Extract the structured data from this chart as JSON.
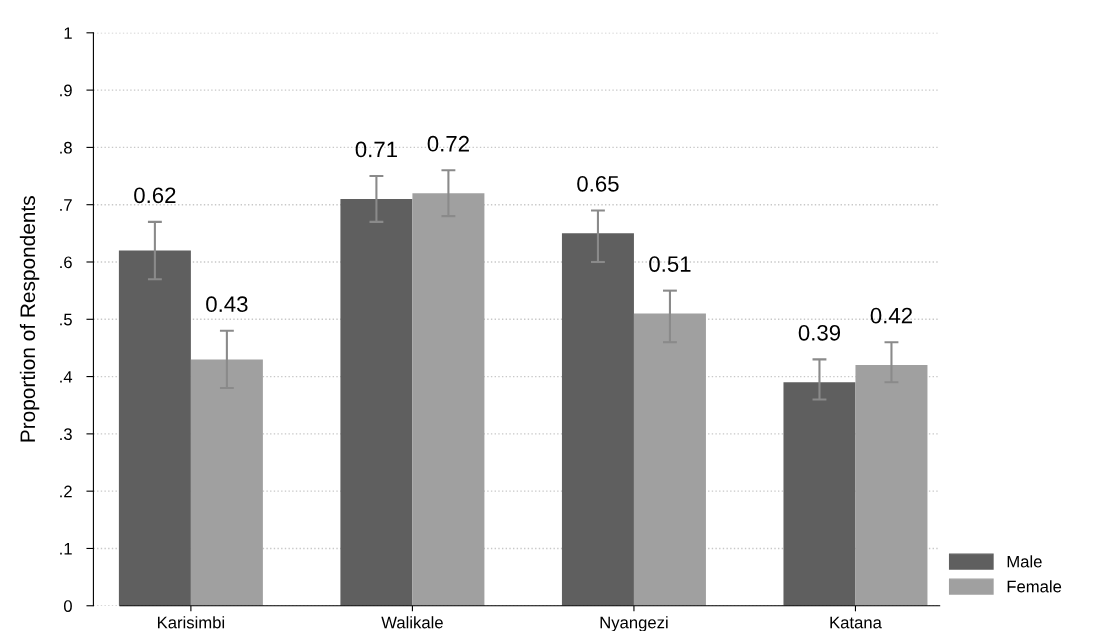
{
  "chart_data": {
    "type": "bar",
    "ylabel": "Proportion of Respondents",
    "categories": [
      "Karisimbi",
      "Walikale",
      "Nyangezi",
      "Katana"
    ],
    "series": [
      {
        "name": "Male",
        "color": "#5f5f5f",
        "values": [
          0.62,
          0.71,
          0.65,
          0.39
        ],
        "errors": [
          [
            0.57,
            0.67
          ],
          [
            0.67,
            0.75
          ],
          [
            0.6,
            0.69
          ],
          [
            0.36,
            0.43
          ]
        ]
      },
      {
        "name": "Female",
        "color": "#a0a0a0",
        "values": [
          0.43,
          0.72,
          0.51,
          0.42
        ],
        "errors": [
          [
            0.38,
            0.48
          ],
          [
            0.68,
            0.76
          ],
          [
            0.46,
            0.55
          ],
          [
            0.39,
            0.46
          ]
        ]
      }
    ],
    "ylim": [
      0,
      1
    ],
    "yticks": [
      0,
      {
        "value": 0.1,
        "label": ".1"
      },
      {
        "value": 0.2,
        "label": ".2"
      },
      {
        "value": 0.3,
        "label": ".3"
      },
      {
        "value": 0.4,
        "label": ".4"
      },
      {
        "value": 0.5,
        "label": ".5"
      },
      {
        "value": 0.6,
        "label": ".6"
      },
      {
        "value": 0.7,
        "label": ".7"
      },
      {
        "value": 0.8,
        "label": ".8"
      },
      {
        "value": 0.9,
        "label": ".9"
      },
      1
    ],
    "grid": "y",
    "legend": "bottom right",
    "data_labels": true
  }
}
